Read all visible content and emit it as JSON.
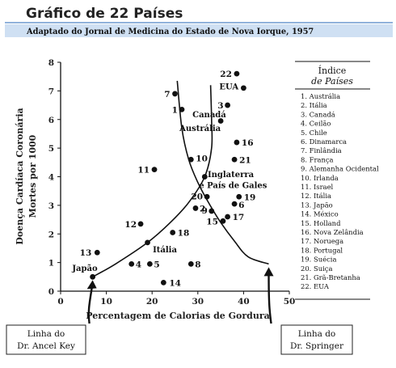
{
  "header": {
    "title": "Gráfico de 22 Países",
    "subtitle": "Adaptado do Jornal de Medicina do Estado de Nova Iorque, 1957",
    "subtitle_bg": "#cfe0f3",
    "rule_color": "#6c98cf"
  },
  "chart_data": {
    "type": "scatter",
    "title": "",
    "xlabel": "Percentagem de Calorias de Gordura",
    "ylabel": "Doença Cardíaca Coronária",
    "ylabel2": "Mortes por 1000",
    "xlim": [
      0,
      50
    ],
    "ylim": [
      0,
      8
    ],
    "xticks": [
      "0",
      "10",
      "20",
      "30",
      "40",
      "50"
    ],
    "yticks": [
      "0",
      "1",
      "2",
      "3",
      "4",
      "5",
      "6",
      "7",
      "8"
    ],
    "grid": false,
    "points": [
      {
        "id": "1",
        "x": 26.5,
        "y": 6.35
      },
      {
        "id": "2",
        "x": 29.5,
        "y": 2.9
      },
      {
        "id": "3",
        "x": 36.5,
        "y": 6.5
      },
      {
        "id": "4",
        "x": 15.5,
        "y": 0.95
      },
      {
        "id": "5",
        "x": 19.5,
        "y": 0.95
      },
      {
        "id": "6",
        "x": 38.0,
        "y": 3.05
      },
      {
        "id": "7",
        "x": 25.0,
        "y": 6.9
      },
      {
        "id": "8",
        "x": 28.5,
        "y": 0.95
      },
      {
        "id": "9",
        "x": 33.0,
        "y": 2.8
      },
      {
        "id": "10",
        "x": 28.5,
        "y": 4.6
      },
      {
        "id": "11",
        "x": 20.5,
        "y": 4.25
      },
      {
        "id": "12",
        "x": 17.5,
        "y": 2.35
      },
      {
        "id": "13",
        "x": 8.0,
        "y": 1.35
      },
      {
        "id": "14",
        "x": 22.5,
        "y": 0.3
      },
      {
        "id": "15",
        "x": 35.5,
        "y": 2.45
      },
      {
        "id": "16",
        "x": 38.5,
        "y": 5.2
      },
      {
        "id": "17",
        "x": 36.5,
        "y": 2.6
      },
      {
        "id": "18",
        "x": 24.5,
        "y": 2.05
      },
      {
        "id": "19",
        "x": 39.0,
        "y": 3.3
      },
      {
        "id": "20",
        "x": 32.0,
        "y": 3.3
      },
      {
        "id": "21",
        "x": 38.0,
        "y": 4.6
      },
      {
        "id": "22",
        "x": 38.5,
        "y": 7.6
      },
      {
        "id": "",
        "x": 35.0,
        "y": 5.95
      },
      {
        "id": "",
        "x": 40.0,
        "y": 7.1
      },
      {
        "id": "",
        "x": 31.5,
        "y": 4.0
      },
      {
        "id": "",
        "x": 19.0,
        "y": 1.7
      },
      {
        "id": "",
        "x": 7.0,
        "y": 0.5
      }
    ],
    "annotations": [
      {
        "text": "EUA",
        "x": 36.8,
        "y": 7.05
      },
      {
        "text": "Canadá",
        "x": 32.5,
        "y": 6.08
      },
      {
        "text": "Austrália",
        "x": 30.5,
        "y": 5.6
      },
      {
        "text": "Inglaterra",
        "x": 37.2,
        "y": 3.98
      },
      {
        "text": "e País de Gales",
        "x": 37.7,
        "y": 3.6
      },
      {
        "text": "Itália",
        "x": 22.8,
        "y": 1.35
      },
      {
        "text": "Japão",
        "x": 5.3,
        "y": 0.7
      }
    ],
    "curves": [
      {
        "name": "Linha do Dr. Ancel Key",
        "points": [
          [
            7,
            0.5
          ],
          [
            12,
            0.95
          ],
          [
            19,
            1.7
          ],
          [
            24,
            2.4
          ],
          [
            28,
            3.1
          ],
          [
            31.5,
            4.0
          ],
          [
            33,
            5.0
          ],
          [
            33,
            6.0
          ],
          [
            32.8,
            7.2
          ]
        ]
      },
      {
        "name": "Linha do Dr. Springer",
        "points": [
          [
            25.5,
            7.35
          ],
          [
            26.5,
            5.7
          ],
          [
            28,
            4.6
          ],
          [
            30,
            3.8
          ],
          [
            32.5,
            3.05
          ],
          [
            35,
            2.4
          ],
          [
            38,
            1.75
          ],
          [
            41,
            1.2
          ],
          [
            45.5,
            0.95
          ]
        ]
      }
    ]
  },
  "legend": {
    "title_line1": "Índice",
    "title_line2": "de Países",
    "items": [
      "1. Austrália",
      "2. Itália",
      "3. Canadá",
      "4. Ceilão",
      "5. Chile",
      "6. Dinamarca",
      "7. Finlândia",
      "8. França",
      "9. Alemanha Ocidental",
      "10. Irlanda",
      "11. Israel",
      "12. Itália",
      "13. Japão",
      "14. México",
      "15. Holland",
      "16. Nova Zelândia",
      "17. Noruega",
      "18. Portugal",
      "19. Suécia",
      "20. Suiça",
      "21. Grã-Bretanha",
      "22. EUA"
    ]
  },
  "callouts": {
    "key_line1": "Linha do",
    "key_line2": "Dr. Ancel Key",
    "springer_line1": "Linha do",
    "springer_line2": "Dr. Springer"
  }
}
